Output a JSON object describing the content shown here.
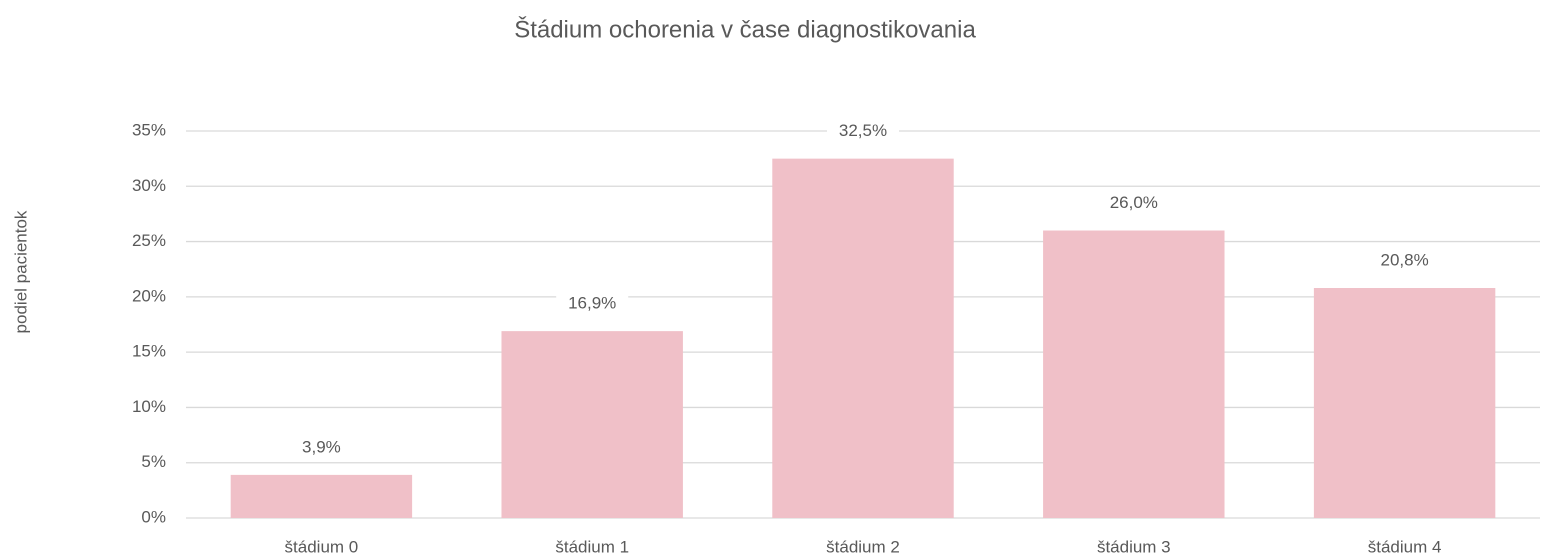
{
  "chart_data": {
    "type": "bar",
    "title": "Štádium ochorenia v čase diagnostikovania",
    "y_label": "podiel pacientok",
    "categories": [
      "štádium 0",
      "štádium 1",
      "štádium 2",
      "štádium 3",
      "štádium 4"
    ],
    "values": [
      3.9,
      16.9,
      32.5,
      26.0,
      20.8
    ],
    "value_labels": [
      "3,9%",
      "16,9%",
      "32,5%",
      "26,0%",
      "20,8%"
    ],
    "color": "#f0c0c8",
    "ylim": [
      0,
      35
    ],
    "yticks": [
      {
        "value": 0,
        "label": "0%"
      },
      {
        "value": 5,
        "label": "5%"
      },
      {
        "value": 10,
        "label": "10%"
      },
      {
        "value": 15,
        "label": "15%"
      },
      {
        "value": 20,
        "label": "20%"
      },
      {
        "value": 25,
        "label": "25%"
      },
      {
        "value": 30,
        "label": "30%"
      },
      {
        "value": 35,
        "label": "35%"
      }
    ],
    "grid": true
  }
}
